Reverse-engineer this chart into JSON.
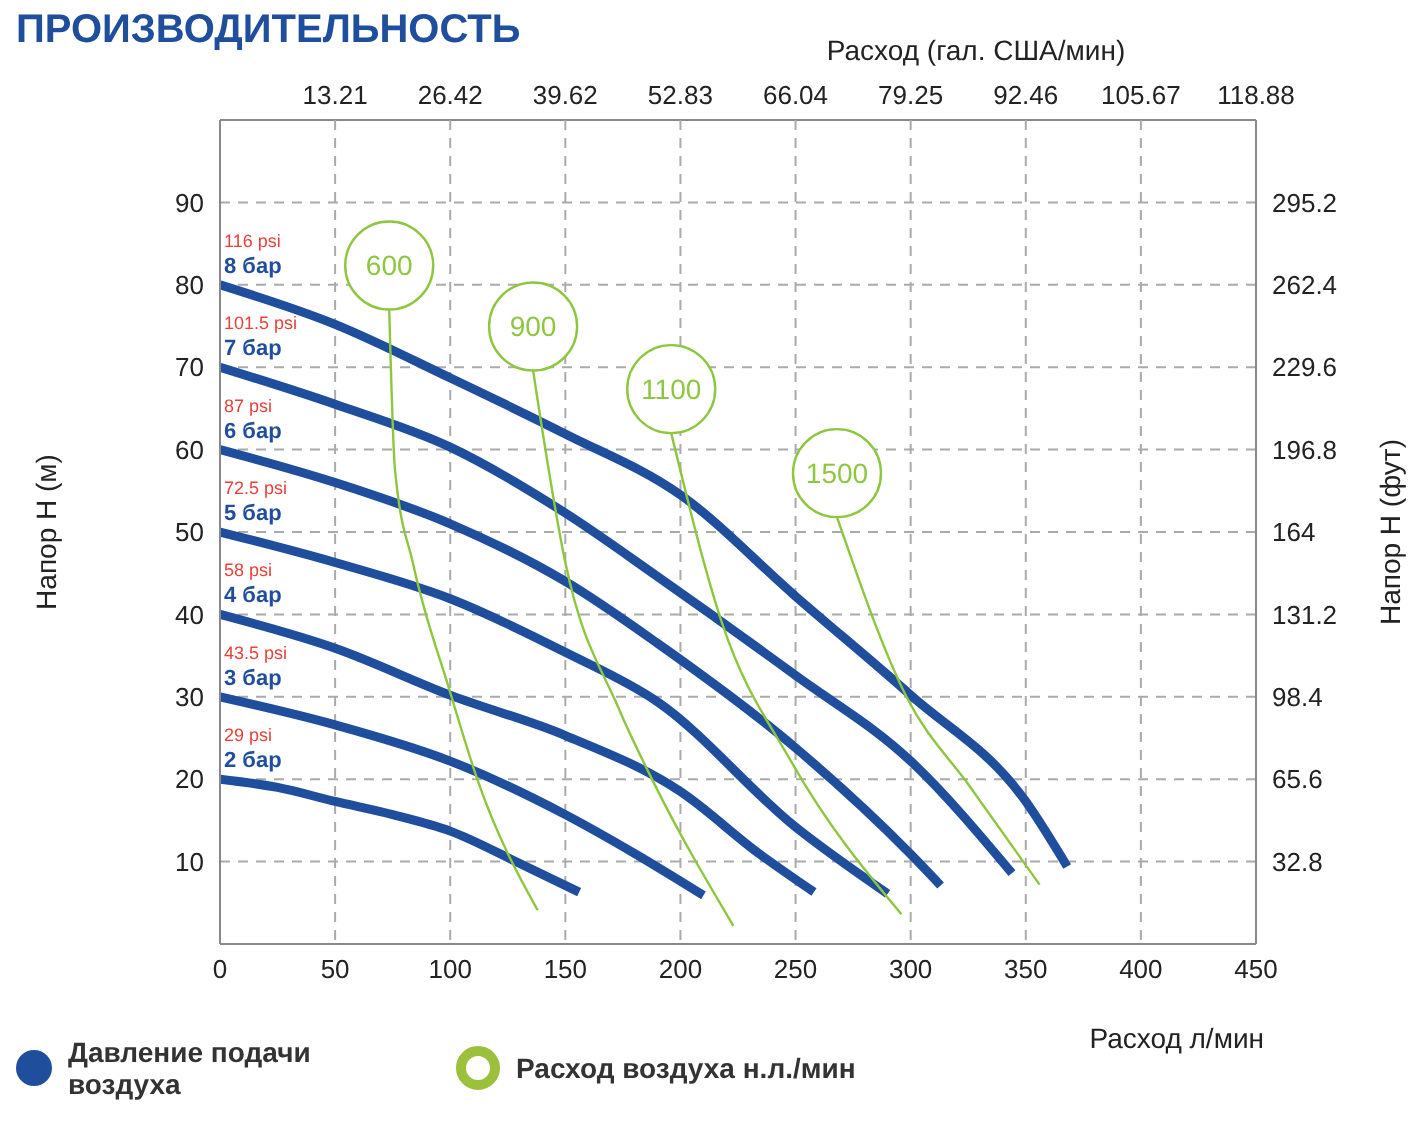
{
  "chart_data": {
    "type": "line",
    "title": "ПРОИЗВОДИТЕЛЬНОСТЬ",
    "xlabel": "Расход л/мин",
    "x2label": "Расход (гал. США/мин)",
    "ylabel": "Напор Н (м)",
    "y2label": "Напор Н (фут)",
    "xlim": [
      0,
      450
    ],
    "xticks": [
      0,
      50,
      100,
      150,
      200,
      250,
      300,
      350,
      400,
      450
    ],
    "x2lim": [
      0,
      118.88
    ],
    "x2ticks": [
      13.21,
      26.42,
      39.62,
      52.83,
      66.04,
      79.25,
      92.46,
      105.67,
      118.88
    ],
    "ylim": [
      0,
      100
    ],
    "yticks": [
      10,
      20,
      30,
      40,
      50,
      60,
      70,
      80,
      90
    ],
    "y2lim": [
      0,
      328
    ],
    "y2ticks": [
      32.8,
      65.6,
      98.4,
      131.2,
      164,
      196.8,
      229.6,
      262.4,
      295.2
    ],
    "grid": true,
    "series": [
      {
        "name": "2 бар",
        "color": "#1f4e9c",
        "x": [
          0,
          25,
          50,
          75,
          100,
          130,
          156
        ],
        "values": [
          20,
          19,
          17.3,
          15.7,
          13.7,
          9.8,
          6.3
        ]
      },
      {
        "name": "3 бар",
        "color": "#1f4e9c",
        "x": [
          0,
          50,
          100,
          150,
          180,
          210
        ],
        "values": [
          30,
          26.6,
          22.2,
          15.7,
          11,
          5.9
        ]
      },
      {
        "name": "4 бар",
        "color": "#1f4e9c",
        "x": [
          0,
          50,
          100,
          150,
          200,
          234,
          258
        ],
        "values": [
          40,
          35.9,
          30.2,
          25.3,
          18.5,
          11,
          6.3
        ]
      },
      {
        "name": "5 бар",
        "color": "#1f4e9c",
        "x": [
          0,
          50,
          100,
          150,
          190,
          250,
          290
        ],
        "values": [
          50,
          46.3,
          41.9,
          35.4,
          29.4,
          14.2,
          6.1
        ]
      },
      {
        "name": "6 бар",
        "color": "#1f4e9c",
        "x": [
          0,
          50,
          100,
          150,
          190,
          250,
          300,
          313
        ],
        "values": [
          60,
          56,
          51,
          44,
          36.5,
          23.8,
          10.9,
          7.1
        ]
      },
      {
        "name": "7 бар",
        "color": "#1f4e9c",
        "x": [
          0,
          50,
          100,
          150,
          190,
          250,
          300,
          344
        ],
        "values": [
          70,
          65.5,
          60.3,
          52.3,
          44.6,
          32.6,
          22.2,
          8.6
        ]
      },
      {
        "name": "8 бар",
        "color": "#1f4e9c",
        "x": [
          0,
          50,
          100,
          150,
          200,
          250,
          300,
          350,
          368
        ],
        "values": [
          80,
          75.2,
          68.7,
          61.9,
          54.5,
          42.2,
          30.2,
          17.3,
          9.4
        ]
      },
      {
        "name": "600",
        "color": "#8dc63f",
        "x": [
          73.5,
          76,
          84,
          99.5,
          112,
          138
        ],
        "values": [
          77,
          57.6,
          46,
          31,
          19.8,
          4.1
        ]
      },
      {
        "name": "900",
        "color": "#8dc63f",
        "x": [
          136,
          150,
          173,
          188,
          223
        ],
        "values": [
          69.6,
          46.3,
          28.7,
          19.8,
          2.2
        ]
      },
      {
        "name": "1100",
        "color": "#8dc63f",
        "x": [
          196,
          218,
          248,
          296
        ],
        "values": [
          62,
          39,
          22.2,
          3.6
        ]
      },
      {
        "name": "1500",
        "color": "#8dc63f",
        "x": [
          268,
          298,
          326,
          356
        ],
        "values": [
          51.8,
          30.1,
          19,
          7.2
        ]
      }
    ],
    "annotations": [
      {
        "text": "29 psi",
        "y": 20
      },
      {
        "text": "43.5 psi",
        "y": 30
      },
      {
        "text": "58 psi",
        "y": 40
      },
      {
        "text": "72.5 psi",
        "y": 50
      },
      {
        "text": "87 psi",
        "y": 60
      },
      {
        "text": "101.5 psi",
        "y": 70
      },
      {
        "text": "116 psi",
        "y": 80
      },
      "Давление подачи воздуха",
      "Расход воздуха н.л./мин"
    ]
  }
}
